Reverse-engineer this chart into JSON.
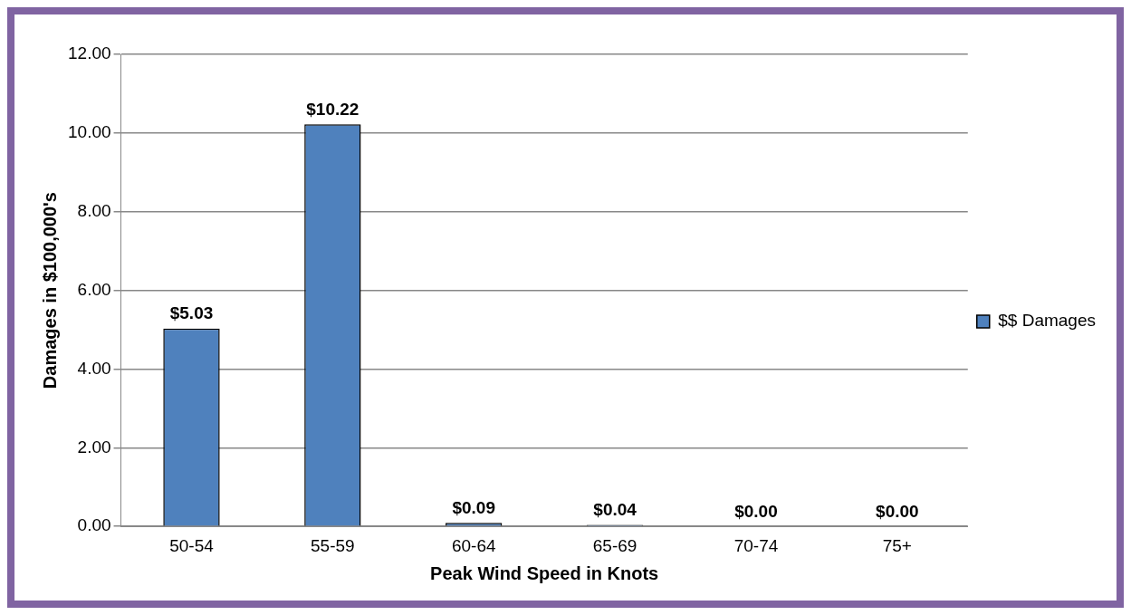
{
  "chart_data": {
    "type": "bar",
    "xlabel": "Peak Wind Speed in Knots",
    "ylabel": "Damages in $100,000's",
    "categories": [
      "50-54",
      "55-59",
      "60-64",
      "65-69",
      "70-74",
      "75+"
    ],
    "series": [
      {
        "name": "$$ Damages",
        "color": "#4f81bd",
        "values": [
          5.03,
          10.22,
          0.09,
          0.04,
          0.0,
          0.0
        ],
        "value_labels": [
          "$5.03",
          "$10.22",
          "$0.09",
          "$0.04",
          "$0.00",
          "$0.00"
        ]
      }
    ],
    "ylim": [
      0,
      12
    ],
    "yticks": [
      {
        "value": 0,
        "label": "0.00"
      },
      {
        "value": 2,
        "label": "2.00"
      },
      {
        "value": 4,
        "label": "4.00"
      },
      {
        "value": 6,
        "label": "6.00"
      },
      {
        "value": 8,
        "label": "8.00"
      },
      {
        "value": 10,
        "label": "10.00"
      },
      {
        "value": 12,
        "label": "12.00"
      }
    ],
    "grid": "y",
    "legend": "right"
  }
}
